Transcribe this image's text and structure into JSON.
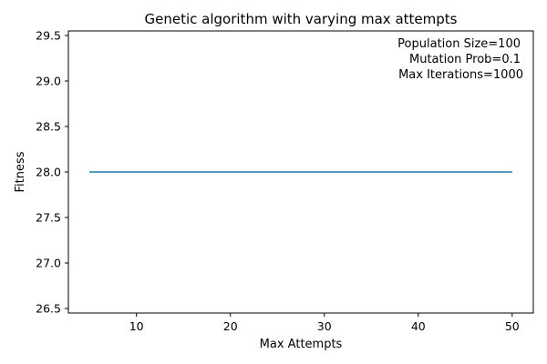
{
  "chart_data": {
    "type": "line",
    "title": "Genetic algorithm with varying max attempts",
    "xlabel": "Max Attempts",
    "ylabel": "Fitness",
    "xlim": [
      2.75,
      52.25
    ],
    "ylim": [
      26.45,
      29.55
    ],
    "x_ticks": [
      10,
      20,
      30,
      40,
      50
    ],
    "y_ticks": [
      26.5,
      27.0,
      27.5,
      28.0,
      28.5,
      29.0,
      29.5
    ],
    "y_tick_labels": [
      "26.5",
      "27.0",
      "27.5",
      "28.0",
      "28.5",
      "29.0",
      "29.5"
    ],
    "grid": false,
    "series": [
      {
        "name": "Fitness",
        "color": "#1f77b4",
        "x": [
          5,
          10,
          15,
          20,
          25,
          30,
          35,
          40,
          45,
          50
        ],
        "y": [
          28,
          28,
          28,
          28,
          28,
          28,
          28,
          28,
          28,
          28
        ]
      }
    ],
    "annotations": [
      "Population Size=100",
      "Mutation Prob=0.1",
      "Max Iterations=1000"
    ]
  }
}
